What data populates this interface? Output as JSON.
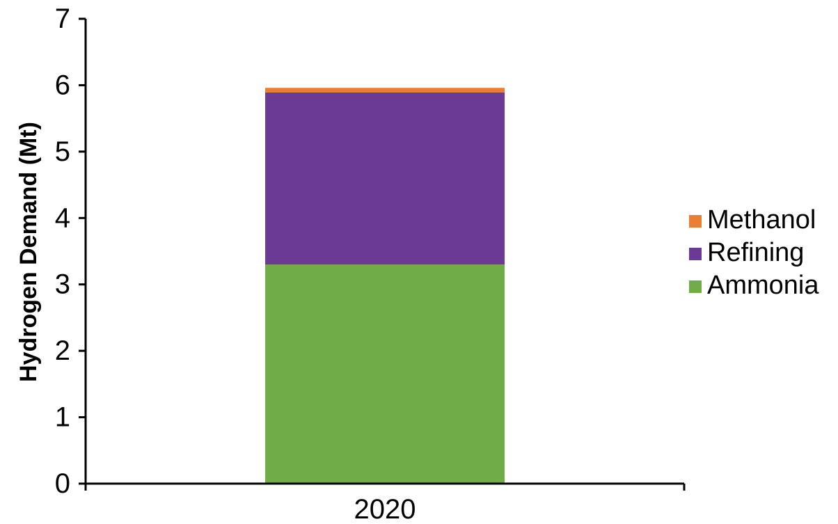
{
  "chart_data": {
    "type": "bar",
    "stacked": true,
    "categories": [
      "2020"
    ],
    "series": [
      {
        "name": "Ammonia",
        "values": [
          3.3
        ],
        "color": "#70ad47"
      },
      {
        "name": "Refining",
        "values": [
          2.59
        ],
        "color": "#6a3a95"
      },
      {
        "name": "Methanol",
        "values": [
          0.07
        ],
        "color": "#ed7d31"
      }
    ],
    "title": "",
    "xlabel": "",
    "ylabel": "Hydrogen Demand (Mt)",
    "ylim": [
      0,
      7
    ],
    "yticks": [
      "0",
      "1",
      "2",
      "3",
      "4",
      "5",
      "6",
      "7"
    ],
    "grid": false,
    "legend": {
      "position": "right",
      "entries": [
        "Methanol",
        "Refining",
        "Ammonia"
      ]
    }
  }
}
